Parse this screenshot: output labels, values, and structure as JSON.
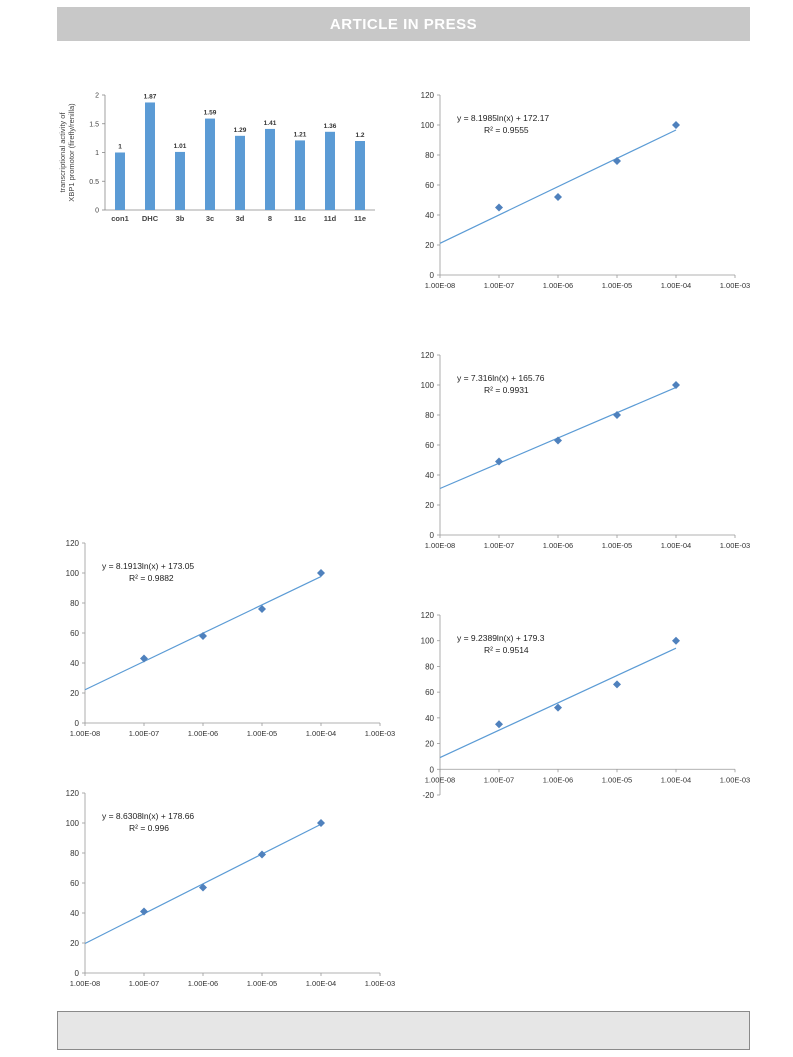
{
  "header": {
    "banner": "ARTICLE IN PRESS"
  },
  "chart_data": [
    {
      "id": "bar",
      "type": "bar",
      "ylabel_line1": "transcriptional activity of",
      "ylabel_line2": "XBP1 promotor (firefly/renilla)",
      "categories": [
        "con1",
        "DHC",
        "3b",
        "3c",
        "3d",
        "8",
        "11c",
        "11d",
        "11e"
      ],
      "values": [
        1,
        1.87,
        1.01,
        1.59,
        1.29,
        1.41,
        1.21,
        1.36,
        1.2
      ],
      "value_labels": [
        "1",
        "1.87",
        "1.01",
        "1.59",
        "1.29",
        "1.41",
        "1.21",
        "1.36",
        "1.2"
      ],
      "ylim": [
        0,
        2
      ],
      "yticks": [
        "0",
        "0.5",
        "1",
        "1.5",
        "2"
      ],
      "color": "#5b9bd5"
    },
    {
      "id": "c1",
      "type": "scatter",
      "x": [
        1e-07,
        1e-06,
        1e-05,
        0.0001
      ],
      "y": [
        45,
        52,
        76,
        100
      ],
      "equation": "y = 8.1985ln(x) + 172.17",
      "r2": "R² = 0.9555",
      "fit": {
        "slope": 8.1985,
        "intercept": 172.17
      },
      "ylim": [
        0,
        120
      ],
      "yticks": [
        "0",
        "20",
        "40",
        "60",
        "80",
        "100",
        "120"
      ],
      "xticks": [
        "1.00E-08",
        "1.00E-07",
        "1.00E-06",
        "1.00E-05",
        "1.00E-04",
        "1.00E-03"
      ],
      "color": "#4f81bd"
    },
    {
      "id": "c2",
      "type": "scatter",
      "x": [
        1e-07,
        1e-06,
        1e-05,
        0.0001
      ],
      "y": [
        49,
        63,
        80,
        100
      ],
      "equation": "y = 7.316ln(x) + 165.76",
      "r2": "R² = 0.9931",
      "fit": {
        "slope": 7.316,
        "intercept": 165.76
      },
      "ylim": [
        0,
        120
      ],
      "yticks": [
        "0",
        "20",
        "40",
        "60",
        "80",
        "100",
        "120"
      ],
      "xticks": [
        "1.00E-08",
        "1.00E-07",
        "1.00E-06",
        "1.00E-05",
        "1.00E-04",
        "1.00E-03"
      ],
      "color": "#4f81bd"
    },
    {
      "id": "c3",
      "type": "scatter",
      "x": [
        1e-07,
        1e-06,
        1e-05,
        0.0001
      ],
      "y": [
        43,
        58,
        76,
        100
      ],
      "equation": "y = 8.1913ln(x) + 173.05",
      "r2": "R² = 0.9882",
      "fit": {
        "slope": 8.1913,
        "intercept": 173.05
      },
      "ylim": [
        0,
        120
      ],
      "yticks": [
        "0",
        "20",
        "40",
        "60",
        "80",
        "100",
        "120"
      ],
      "xticks": [
        "1.00E-08",
        "1.00E-07",
        "1.00E-06",
        "1.00E-05",
        "1.00E-04",
        "1.00E-03"
      ],
      "color": "#4f81bd"
    },
    {
      "id": "c4",
      "type": "scatter",
      "x": [
        1e-07,
        1e-06,
        1e-05,
        0.0001
      ],
      "y": [
        35,
        48,
        66,
        100
      ],
      "equation": "y = 9.2389ln(x) + 179.3",
      "r2": "R² = 0.9514",
      "fit": {
        "slope": 9.2389,
        "intercept": 179.3
      },
      "ylim": [
        -20,
        120
      ],
      "yticks": [
        "-20",
        "0",
        "20",
        "40",
        "60",
        "80",
        "100",
        "120"
      ],
      "xticks": [
        "1.00E-08",
        "1.00E-07",
        "1.00E-06",
        "1.00E-05",
        "1.00E-04",
        "1.00E-03"
      ],
      "color": "#4f81bd"
    },
    {
      "id": "c5",
      "type": "scatter",
      "x": [
        1e-07,
        1e-06,
        1e-05,
        0.0001
      ],
      "y": [
        41,
        57,
        79,
        100
      ],
      "equation": "y = 8.6308ln(x) + 178.66",
      "r2": "R² = 0.996",
      "fit": {
        "slope": 8.6308,
        "intercept": 178.66
      },
      "ylim": [
        0,
        120
      ],
      "yticks": [
        "0",
        "20",
        "40",
        "60",
        "80",
        "100",
        "120"
      ],
      "xticks": [
        "1.00E-08",
        "1.00E-07",
        "1.00E-06",
        "1.00E-05",
        "1.00E-04",
        "1.00E-03"
      ],
      "color": "#4f81bd"
    }
  ]
}
